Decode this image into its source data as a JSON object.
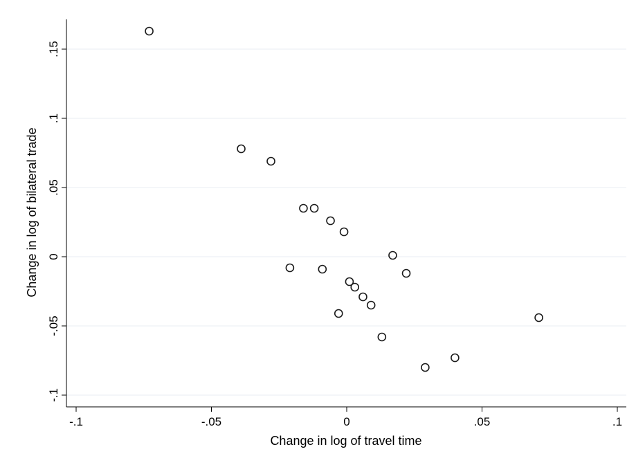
{
  "chart_data": {
    "type": "scatter",
    "xlabel": "Change in log of travel time",
    "ylabel": "Change in log of bilateral trade",
    "xlim": [
      -0.1,
      0.1
    ],
    "ylim": [
      -0.1,
      0.15
    ],
    "grid": true,
    "x_ticks": [
      {
        "value": -0.1,
        "label": "-.1"
      },
      {
        "value": -0.05,
        "label": "-.05"
      },
      {
        "value": 0,
        "label": "0"
      },
      {
        "value": 0.05,
        "label": ".05"
      },
      {
        "value": 0.1,
        "label": ".1"
      }
    ],
    "y_ticks": [
      {
        "value": -0.1,
        "label": "-.1"
      },
      {
        "value": -0.05,
        "label": "-.05"
      },
      {
        "value": 0,
        "label": "0"
      },
      {
        "value": 0.05,
        "label": ".05"
      },
      {
        "value": 0.1,
        "label": ".1"
      },
      {
        "value": 0.15,
        "label": ".15"
      }
    ],
    "points": [
      {
        "x": -0.073,
        "y": 0.163
      },
      {
        "x": -0.039,
        "y": 0.078
      },
      {
        "x": -0.028,
        "y": 0.069
      },
      {
        "x": -0.016,
        "y": 0.035
      },
      {
        "x": -0.012,
        "y": 0.035
      },
      {
        "x": -0.006,
        "y": 0.026
      },
      {
        "x": -0.001,
        "y": 0.018
      },
      {
        "x": -0.021,
        "y": -0.008
      },
      {
        "x": -0.009,
        "y": -0.009
      },
      {
        "x": 0.017,
        "y": 0.001
      },
      {
        "x": 0.022,
        "y": -0.012
      },
      {
        "x": 0.001,
        "y": -0.018
      },
      {
        "x": 0.003,
        "y": -0.022
      },
      {
        "x": 0.006,
        "y": -0.029
      },
      {
        "x": 0.009,
        "y": -0.035
      },
      {
        "x": -0.003,
        "y": -0.041
      },
      {
        "x": 0.071,
        "y": -0.044
      },
      {
        "x": 0.013,
        "y": -0.058
      },
      {
        "x": 0.029,
        "y": -0.08
      },
      {
        "x": 0.04,
        "y": -0.073
      }
    ]
  }
}
